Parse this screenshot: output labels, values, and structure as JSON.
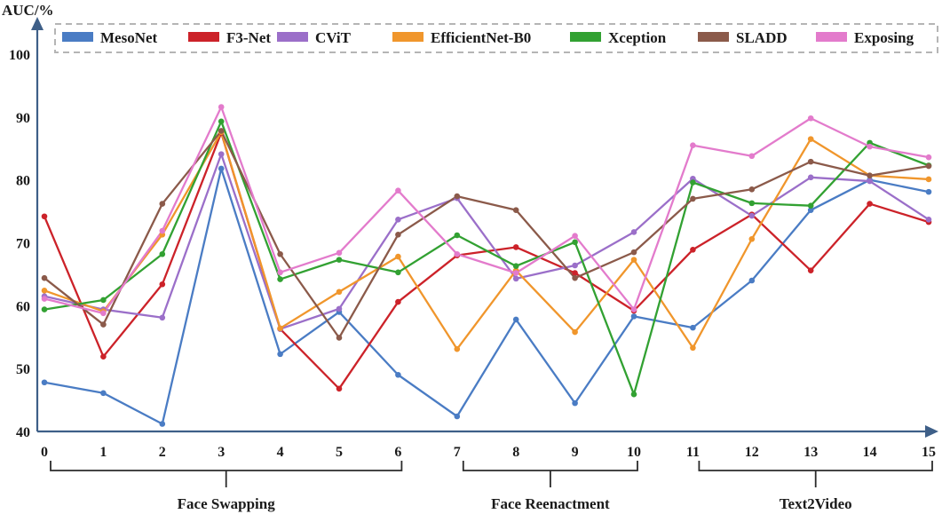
{
  "chart_data": {
    "type": "line",
    "ylabel": "AUC/%",
    "ylim": [
      40,
      100
    ],
    "yticks": [
      40,
      50,
      60,
      70,
      80,
      90,
      100
    ],
    "x": [
      0,
      1,
      2,
      3,
      4,
      5,
      6,
      7,
      8,
      9,
      10,
      11,
      12,
      13,
      14,
      15
    ],
    "grid": false,
    "legend_position": "top",
    "groups": [
      {
        "label": "Face Swapping",
        "from": 0,
        "to": 6
      },
      {
        "label": "Face Reenactment",
        "from": 7,
        "to": 10
      },
      {
        "label": "Text2Video",
        "from": 11,
        "to": 15
      }
    ],
    "series": [
      {
        "name": "MesoNet",
        "color": "#4a7cc4",
        "values": [
          47.8,
          46.1,
          41.2,
          81.8,
          52.3,
          59.0,
          49.0,
          42.4,
          57.8,
          44.5,
          58.3,
          56.5,
          64.0,
          75.2,
          80.0,
          78.1
        ]
      },
      {
        "name": "F3-Net",
        "color": "#cc2229",
        "values": [
          74.2,
          51.9,
          63.4,
          87.5,
          56.3,
          46.8,
          60.6,
          68.0,
          69.3,
          65.2,
          59.2,
          68.9,
          74.5,
          65.6,
          76.2,
          73.3
        ]
      },
      {
        "name": "CViT",
        "color": "#9b6fc9",
        "values": [
          61.5,
          59.4,
          58.1,
          84.1,
          56.3,
          59.5,
          73.7,
          77.1,
          64.3,
          66.4,
          71.7,
          80.2,
          74.3,
          80.4,
          79.8,
          73.7
        ]
      },
      {
        "name": "EfficientNet-B0",
        "color": "#f0962c",
        "values": [
          62.4,
          59.1,
          71.3,
          87.6,
          56.4,
          62.2,
          67.8,
          53.1,
          65.6,
          55.8,
          67.3,
          53.3,
          70.6,
          86.5,
          80.7,
          80.1
        ]
      },
      {
        "name": "Xception",
        "color": "#32a132",
        "values": [
          59.4,
          60.9,
          68.2,
          89.3,
          64.2,
          67.3,
          65.3,
          71.2,
          66.3,
          70.1,
          45.9,
          79.6,
          76.3,
          75.9,
          85.9,
          82.3
        ]
      },
      {
        "name": "SLADD",
        "color": "#8b5a4a",
        "values": [
          64.4,
          57.0,
          76.2,
          87.8,
          68.2,
          54.9,
          71.3,
          77.4,
          75.2,
          64.4,
          68.5,
          77.0,
          78.5,
          82.9,
          80.7,
          82.2
        ]
      },
      {
        "name": "Exposing",
        "color": "#e37bcc",
        "values": [
          61.1,
          58.8,
          71.9,
          91.6,
          65.3,
          68.4,
          78.3,
          68.2,
          65.2,
          71.1,
          59.4,
          85.5,
          83.8,
          89.8,
          85.3,
          83.6
        ]
      }
    ]
  }
}
